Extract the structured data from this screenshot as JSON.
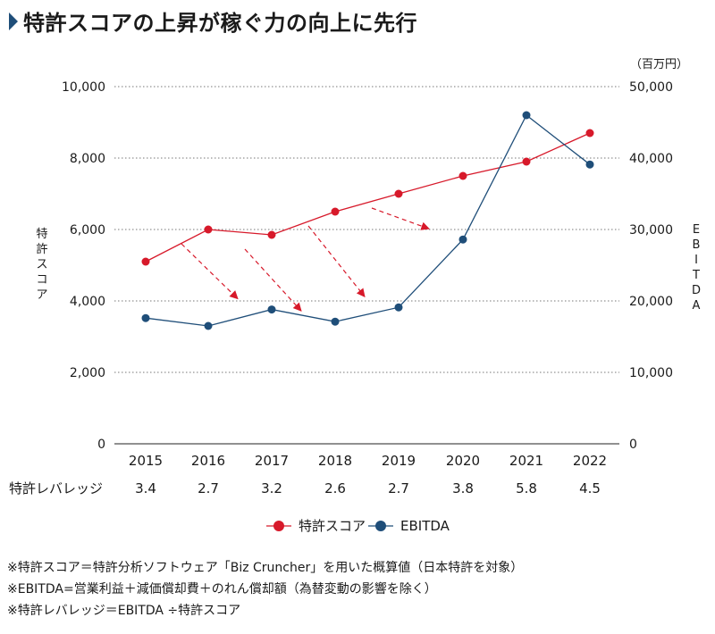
{
  "title": "特許スコアの上昇が稼ぐ力の向上に先行",
  "chart_data": {
    "type": "line",
    "x": [
      "2015",
      "2016",
      "2017",
      "2018",
      "2019",
      "2020",
      "2021",
      "2022"
    ],
    "series": [
      {
        "name": "特許スコア",
        "axis": "left",
        "color": "#d7192a",
        "values": [
          5100,
          6000,
          5850,
          6500,
          7000,
          7500,
          7900,
          8700
        ]
      },
      {
        "name": "EBITDA",
        "axis": "right",
        "color": "#1f4e79",
        "values": [
          17600,
          16500,
          18800,
          17100,
          19100,
          28600,
          46000,
          39100
        ]
      }
    ],
    "ylabel_left": "特許スコア",
    "ylabel_right": "EBITDA",
    "unit_right": "（百万円）",
    "ylim_left": [
      0,
      10000
    ],
    "ylim_right": [
      0,
      50000
    ],
    "yticks_left": [
      "0",
      "2,000",
      "4,000",
      "6,000",
      "8,000",
      "10,000"
    ],
    "yticks_right": [
      "0",
      "10,000",
      "20,000",
      "30,000",
      "40,000",
      "50,000"
    ],
    "grid": true,
    "arrows": [
      {
        "from": "2016",
        "to": "2017"
      },
      {
        "from": "2017",
        "to": "2018"
      },
      {
        "from": "2018",
        "to": "2019"
      },
      {
        "from": "2019",
        "to": "2020"
      }
    ],
    "legend": {
      "position": "bottom",
      "items": [
        "特許スコア",
        "EBITDA"
      ]
    },
    "leverage": {
      "label": "特許レバレッジ",
      "values": [
        "3.4",
        "2.7",
        "3.2",
        "2.6",
        "2.7",
        "3.8",
        "5.8",
        "4.5"
      ]
    }
  },
  "notes": [
    "※特許スコア＝特許分析ソフトウェア「Biz Cruncher」を用いた概算値（日本特許を対象）",
    "※EBITDA=営業利益＋減価償却費＋のれん償却額（為替変動の影響を除く）",
    "※特許レバレッジ＝EBITDA ÷特許スコア"
  ]
}
